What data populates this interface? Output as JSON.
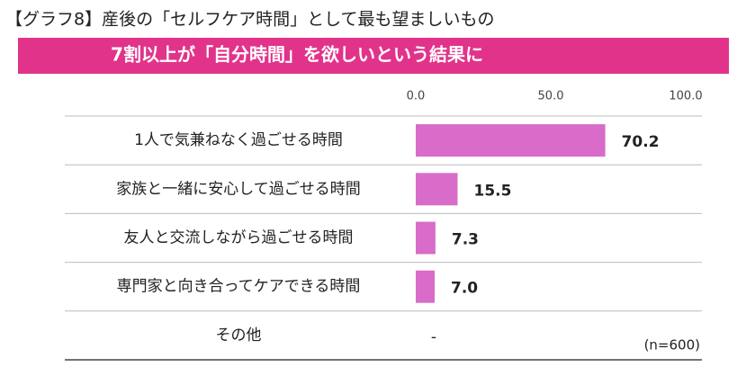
{
  "chart_data": {
    "type": "hbar",
    "title": "【グラフ8】産後の「セルフケア時間」として最も望ましいもの",
    "subtitle": "7割以上が「自分時間」を欲しいという結果に",
    "categories": [
      "1人で気兼ねなく過ごせる時間",
      "家族と一緒に安心して過ごせる時間",
      "友人と交流しながら過ごせる時間",
      "専門家と向き合ってケアできる時間",
      "その他"
    ],
    "values": [
      70.2,
      15.5,
      7.3,
      7.0,
      null
    ],
    "value_labels": [
      "70.2",
      "15.5",
      "7.3",
      "7.0",
      "-"
    ],
    "color": "#d86cc8",
    "banner_color": "#e2338a",
    "xlim": [
      0,
      100
    ],
    "xticks": [
      {
        "value": 0,
        "label": "0.0"
      },
      {
        "value": 50,
        "label": "50.0"
      },
      {
        "value": 100,
        "label": "100.0"
      }
    ],
    "note": "(n=600)"
  }
}
